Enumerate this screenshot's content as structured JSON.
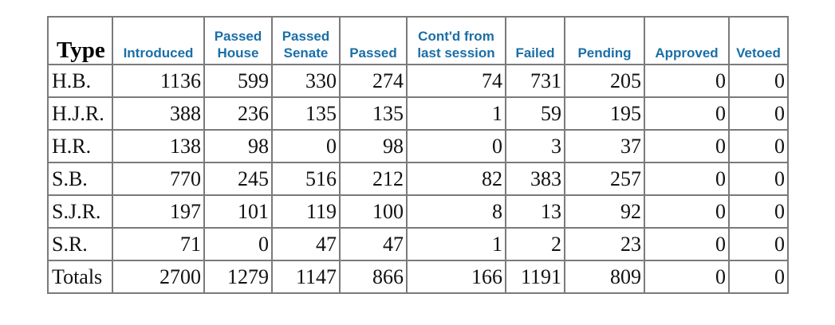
{
  "table": {
    "headers": {
      "type": "Type",
      "introduced": "Introduced",
      "passed_house": "Passed House",
      "passed_senate": "Passed Senate",
      "passed": "Passed",
      "contd": "Cont'd from last session",
      "failed": "Failed",
      "pending": "Pending",
      "approved": "Approved",
      "vetoed": "Vetoed"
    },
    "rows": [
      {
        "type": "H.B.",
        "introduced": "1136",
        "passed_house": "599",
        "passed_senate": "330",
        "passed": "274",
        "contd": "74",
        "failed": "731",
        "pending": "205",
        "approved": "0",
        "vetoed": "0"
      },
      {
        "type": "H.J.R.",
        "introduced": "388",
        "passed_house": "236",
        "passed_senate": "135",
        "passed": "135",
        "contd": "1",
        "failed": "59",
        "pending": "195",
        "approved": "0",
        "vetoed": "0"
      },
      {
        "type": "H.R.",
        "introduced": "138",
        "passed_house": "98",
        "passed_senate": "0",
        "passed": "98",
        "contd": "0",
        "failed": "3",
        "pending": "37",
        "approved": "0",
        "vetoed": "0"
      },
      {
        "type": "S.B.",
        "introduced": "770",
        "passed_house": "245",
        "passed_senate": "516",
        "passed": "212",
        "contd": "82",
        "failed": "383",
        "pending": "257",
        "approved": "0",
        "vetoed": "0"
      },
      {
        "type": "S.J.R.",
        "introduced": "197",
        "passed_house": "101",
        "passed_senate": "119",
        "passed": "100",
        "contd": "8",
        "failed": "13",
        "pending": "92",
        "approved": "0",
        "vetoed": "0"
      },
      {
        "type": "S.R.",
        "introduced": "71",
        "passed_house": "0",
        "passed_senate": "47",
        "passed": "47",
        "contd": "1",
        "failed": "2",
        "pending": "23",
        "approved": "0",
        "vetoed": "0"
      },
      {
        "type": "Totals",
        "introduced": "2700",
        "passed_house": "1279",
        "passed_senate": "1147",
        "passed": "866",
        "contd": "166",
        "failed": "1191",
        "pending": "809",
        "approved": "0",
        "vetoed": "0"
      }
    ],
    "colors": {
      "header_text": "#1a6ea8",
      "border": "#7a7a7a",
      "cell_text": "#111111"
    }
  }
}
